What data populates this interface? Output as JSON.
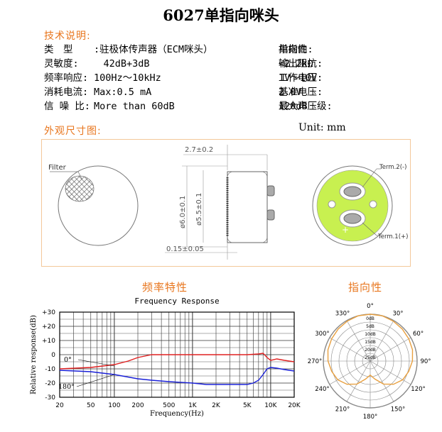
{
  "title": "6027单指向咪头",
  "tech": {
    "heading": "技术说明:",
    "left": [
      {
        "label": "类　型",
        "value": ":驻极体传声器（ECM咪头）"
      },
      {
        "label": "灵敏度:",
        "value": "　42dB+3dB"
      },
      {
        "label": "频率响应:",
        "value": "100Hz～10kHz"
      },
      {
        "label": "消耗电流:",
        "value": "Max:0.5 mA"
      },
      {
        "label": "信 噪 比:",
        "value": "More than 60dB"
      }
    ],
    "right": [
      {
        "label": "指向性:",
        "value": "单指向"
      },
      {
        "label": "输出阻抗:",
        "value": "<2.2kΩ"
      },
      {
        "label": "工作电压:",
        "value": "1V～10V"
      },
      {
        "label": "基准电压:",
        "value": "2.0V"
      },
      {
        "label": "最大声压级:",
        "value": "120dB"
      }
    ]
  },
  "dims": {
    "heading": "外观尺寸图:",
    "unit": "Unit: mm",
    "filter_label": "Filter",
    "thickness": "2.7±0.2",
    "outer_dia": "ø6.0±0.1",
    "inner_dia": "ø5.5±0.1",
    "gap": "0.15±0.05",
    "term2": "Term.2(-)",
    "term1": "Term.1(+)",
    "plus": "+",
    "minus": "-",
    "colors": {
      "pcb": "#c8f050",
      "box": "#f3c89a",
      "accent": "#e8761e"
    }
  },
  "freq": {
    "heading": "频率特性",
    "chart_data": {
      "type": "line",
      "title": "Frequency Response",
      "xlabel": "Frequency(Hz)",
      "ylabel": "Relative response(dB)",
      "x_ticks": [
        "20",
        "50",
        "100",
        "200",
        "500",
        "1K",
        "2K",
        "5K",
        "10K",
        "20K"
      ],
      "y_ticks": [
        "+30",
        "+20",
        "+10",
        "0",
        "-10",
        "-20",
        "-30"
      ],
      "ylim": [
        -30,
        30
      ],
      "xlim": [
        20,
        20000
      ],
      "x_scale": "log",
      "grid": true,
      "series": [
        {
          "name": "0°",
          "color": "#e02020",
          "x": [
            20,
            50,
            100,
            150,
            200,
            300,
            500,
            1000,
            2000,
            3000,
            5000,
            7000,
            8000,
            9000,
            10000,
            12000,
            15000,
            20000
          ],
          "y": [
            -10,
            -9,
            -7,
            -4.5,
            -2,
            0,
            0,
            0,
            0,
            0,
            0,
            0.5,
            1,
            -2,
            -4,
            -3,
            -4,
            -5
          ]
        },
        {
          "name": "180°",
          "color": "#1a20d8",
          "x": [
            20,
            50,
            100,
            200,
            300,
            500,
            1000,
            1500,
            2000,
            3000,
            5000,
            6000,
            7000,
            8000,
            9000,
            10000,
            12000,
            15000,
            20000
          ],
          "y": [
            -11,
            -12,
            -14,
            -17,
            -18,
            -19,
            -20,
            -21,
            -21,
            -21,
            -21,
            -20,
            -18,
            -14,
            -10,
            -9,
            -9.5,
            -10.5,
            -11.5
          ]
        }
      ]
    }
  },
  "polar": {
    "heading": "指向性",
    "chart_data": {
      "type": "polar",
      "angle_labels": [
        "0°",
        "30°",
        "60°",
        "90°",
        "120°",
        "150°",
        "180°",
        "210°",
        "240°",
        "270°",
        "300°",
        "330°"
      ],
      "r_labels": [
        "0dB",
        "5dB",
        "10dB",
        "15dB",
        "20dB",
        "25dB"
      ],
      "series": [
        {
          "name": "",
          "color": "#e8a040",
          "angles": [
            0,
            15,
            30,
            45,
            60,
            75,
            90,
            105,
            120,
            135,
            150,
            165,
            180,
            195,
            210,
            225,
            240,
            255,
            270,
            285,
            300,
            315,
            330,
            345,
            360
          ],
          "db": [
            0,
            0,
            -0.5,
            -1,
            -1.5,
            -2,
            -3,
            -4.5,
            -6,
            -9,
            -13,
            -18,
            -21,
            -18,
            -13,
            -9,
            -6,
            -4.5,
            -3,
            -2,
            -1.5,
            -1,
            -0.5,
            0,
            0
          ]
        }
      ]
    }
  }
}
